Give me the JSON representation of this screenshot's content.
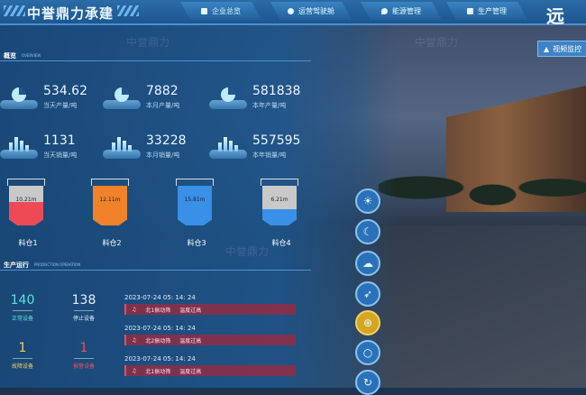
{
  "header": {
    "brand": "中誉鼎力承建",
    "nav": [
      {
        "label": "企业总览",
        "icon": "building-icon"
      },
      {
        "label": "运营驾驶舱",
        "icon": "shield-icon"
      },
      {
        "label": "能源管理",
        "icon": "drop-icon"
      },
      {
        "label": "生产管理",
        "icon": "factory-icon"
      }
    ],
    "title_partial": "远",
    "video_button": "视频监控"
  },
  "overview": {
    "title": "概览",
    "subtitle": "OVERVIEW",
    "production": [
      {
        "value": "534.62",
        "label": "当天产量/吨"
      },
      {
        "value": "7882",
        "label": "本月产量/吨"
      },
      {
        "value": "581838",
        "label": "本年产量/吨"
      }
    ],
    "sales": [
      {
        "value": "1131",
        "label": "当天销量/吨"
      },
      {
        "value": "33228",
        "label": "本月销量/吨"
      },
      {
        "value": "557595",
        "label": "本年销量/吨"
      }
    ],
    "silos": [
      {
        "name": "料仓1",
        "level": "10.21m",
        "fill_pct": 60,
        "color": "#ee4a55"
      },
      {
        "name": "料仓2",
        "level": "12.11m",
        "fill_pct": 100,
        "color": "#f0832a"
      },
      {
        "name": "料仓3",
        "level": "15.81m",
        "fill_pct": 100,
        "color": "#3a8fe6"
      },
      {
        "name": "料仓4",
        "level": "6.21m",
        "fill_pct": 40,
        "color": "#3a8fe6"
      }
    ]
  },
  "operation": {
    "title": "生产运行",
    "subtitle": "PRODUCTION OPERATION",
    "counts": [
      {
        "value": "140",
        "label": "正常设备",
        "color": "#5fe0d8"
      },
      {
        "value": "138",
        "label": "停止设备",
        "color": "#e6eef6"
      },
      {
        "value": "1",
        "label": "故障设备",
        "color": "#f0d060"
      },
      {
        "value": "1",
        "label": "报警设备",
        "color": "#f05060"
      }
    ],
    "alarms": [
      {
        "time": "2023-07-24 05: 14: 24",
        "device": "北1振动筛",
        "msg": "温度过高"
      },
      {
        "time": "2023-07-24 05: 14: 24",
        "device": "北2振动筛",
        "msg": "温度过高"
      },
      {
        "time": "2023-07-24 05: 14: 24",
        "device": "北1振动筛",
        "msg": "温度过高"
      }
    ]
  },
  "scene_controls": [
    {
      "icon": "sunrise-icon",
      "active": false
    },
    {
      "icon": "moon-icon",
      "active": false
    },
    {
      "icon": "cloud-icon",
      "active": false
    },
    {
      "icon": "bird-icon",
      "active": false
    },
    {
      "icon": "globe-icon",
      "active": true
    },
    {
      "icon": "rotate-icon",
      "active": false
    },
    {
      "icon": "refresh-icon",
      "active": false
    }
  ],
  "watermark": "中誉鼎力"
}
